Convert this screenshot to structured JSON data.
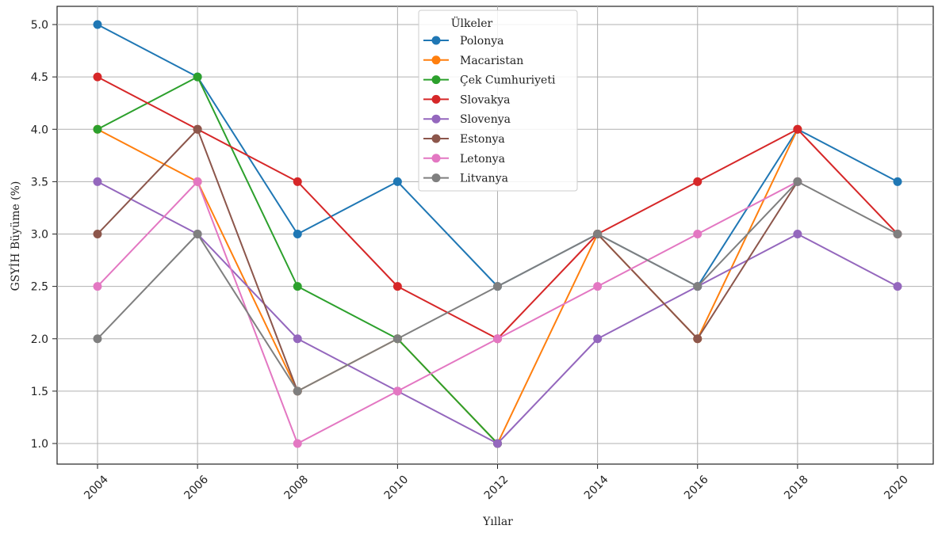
{
  "chart_data": {
    "type": "line",
    "xlabel": "Yıllar",
    "ylabel": "GSYİH Büyüme (%)",
    "x": [
      "2004",
      "2006",
      "2008",
      "2010",
      "2012",
      "2014",
      "2016",
      "2018",
      "2020"
    ],
    "xlim": [
      2004,
      2020
    ],
    "ylim": [
      1.0,
      5.0
    ],
    "yticks": [
      "1.0",
      "1.5",
      "2.0",
      "2.5",
      "3.0",
      "3.5",
      "4.0",
      "4.5",
      "5.0"
    ],
    "grid": true,
    "legend_title": "Ülkeler",
    "legend_position": "top-center",
    "series": [
      {
        "name": "Polonya",
        "color": "#1f77b4",
        "values": [
          5.0,
          4.5,
          3.0,
          3.5,
          2.5,
          3.0,
          2.5,
          4.0,
          3.5
        ]
      },
      {
        "name": "Macaristan",
        "color": "#ff7f0e",
        "values": [
          4.0,
          3.5,
          1.5,
          2.0,
          1.0,
          3.0,
          2.0,
          4.0,
          null
        ]
      },
      {
        "name": "Çek Cumhuriyeti",
        "color": "#2ca02c",
        "values": [
          4.0,
          4.5,
          2.5,
          2.0,
          1.0,
          null,
          null,
          null,
          null
        ]
      },
      {
        "name": "Slovakya",
        "color": "#d62728",
        "values": [
          4.5,
          4.0,
          3.5,
          2.5,
          2.0,
          3.0,
          3.5,
          4.0,
          3.0
        ]
      },
      {
        "name": "Slovenya",
        "color": "#9467bd",
        "values": [
          3.5,
          3.0,
          2.0,
          1.5,
          1.0,
          2.0,
          2.5,
          3.0,
          2.5
        ]
      },
      {
        "name": "Estonya",
        "color": "#8c564b",
        "values": [
          3.0,
          4.0,
          1.5,
          null,
          null,
          3.0,
          2.0,
          3.5,
          null
        ]
      },
      {
        "name": "Letonya",
        "color": "#e377c2",
        "values": [
          2.5,
          3.5,
          1.0,
          1.5,
          2.0,
          2.5,
          3.0,
          3.5,
          null
        ]
      },
      {
        "name": "Litvanya",
        "color": "#7f7f7f",
        "values": [
          2.0,
          3.0,
          1.5,
          2.0,
          2.5,
          3.0,
          2.5,
          3.5,
          3.0
        ]
      }
    ]
  }
}
